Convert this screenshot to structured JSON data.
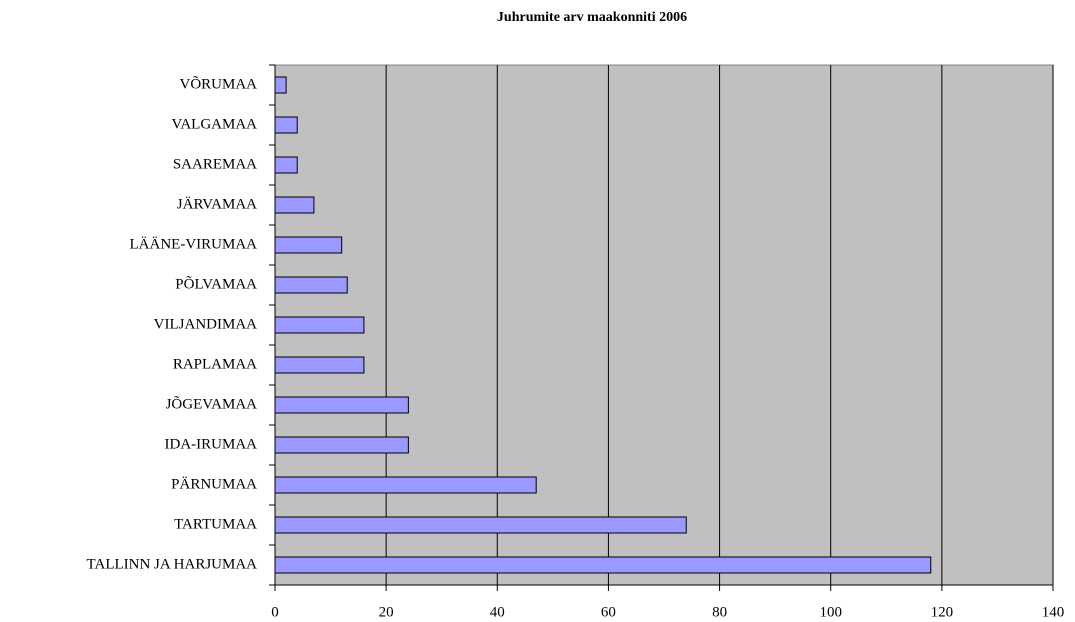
{
  "chart_data": {
    "type": "bar",
    "orientation": "horizontal",
    "title": "Juhrumite arv maakonniti 2006",
    "categories": [
      "VÕRUMAA",
      "VALGAMAA",
      "SAAREMAA",
      "JÄRVAMAA",
      "LÄÄNE-VIRUMAA",
      "PÕLVAMAA",
      "VILJANDIMAA",
      "RAPLAMAA",
      "JÕGEVAMAA",
      "IDA-IRUMAA",
      "PÄRNUMAA",
      "TARTUMAA",
      "TALLINN JA HARJUMAA"
    ],
    "values": [
      2,
      4,
      4,
      7,
      12,
      13,
      16,
      16,
      24,
      24,
      47,
      74,
      118
    ],
    "color": "#9999ff",
    "xlim": [
      0,
      140
    ],
    "xticks": [
      0,
      20,
      40,
      60,
      80,
      100,
      120,
      140
    ],
    "grid": true
  }
}
